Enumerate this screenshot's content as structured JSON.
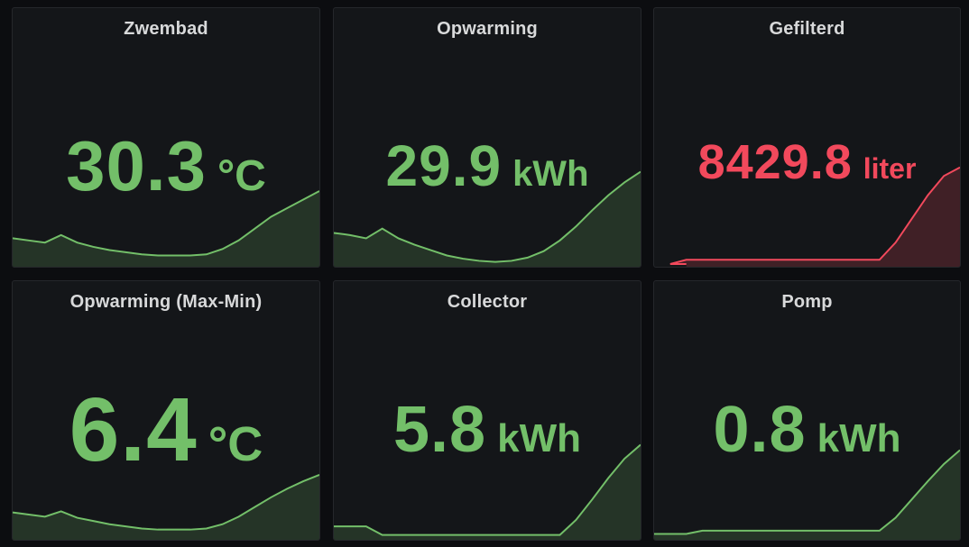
{
  "colors": {
    "ok": "#73bf69",
    "ok_fill": "rgba(115,191,105,0.18)",
    "alert": "#f2495c",
    "alert_fill": "rgba(242,73,92,0.20)"
  },
  "panels": [
    {
      "title": "Zwembad",
      "value": "30.3",
      "unit": "°C",
      "status": "ok",
      "spark": [
        0.24,
        0.22,
        0.2,
        0.27,
        0.2,
        0.16,
        0.13,
        0.11,
        0.09,
        0.08,
        0.08,
        0.08,
        0.09,
        0.14,
        0.22,
        0.33,
        0.44,
        0.52,
        0.6,
        0.68
      ]
    },
    {
      "title": "Opwarming",
      "value": "29.9",
      "unit": "kWh",
      "status": "ok",
      "spark": [
        0.29,
        0.27,
        0.24,
        0.33,
        0.24,
        0.18,
        0.13,
        0.08,
        0.05,
        0.03,
        0.02,
        0.03,
        0.06,
        0.12,
        0.22,
        0.35,
        0.5,
        0.64,
        0.76,
        0.86
      ]
    },
    {
      "title": "Gefilterd",
      "value": "8429.8",
      "unit": "liter",
      "status": "alert",
      "spark": [
        0.0,
        0.0,
        0.04,
        0.04,
        0.04,
        0.04,
        0.04,
        0.04,
        0.04,
        0.04,
        0.04,
        0.04,
        0.04,
        0.04,
        0.04,
        0.2,
        0.42,
        0.64,
        0.82,
        0.9
      ]
    },
    {
      "title": "Opwarming (Max-Min)",
      "value": "6.4",
      "unit": "°C",
      "status": "ok",
      "spark": [
        0.23,
        0.21,
        0.19,
        0.24,
        0.18,
        0.15,
        0.12,
        0.1,
        0.08,
        0.07,
        0.07,
        0.07,
        0.08,
        0.12,
        0.19,
        0.28,
        0.37,
        0.45,
        0.52,
        0.58
      ]
    },
    {
      "title": "Collector",
      "value": "5.8",
      "unit": "kWh",
      "status": "ok",
      "spark": [
        0.1,
        0.1,
        0.1,
        0.02,
        0.02,
        0.02,
        0.02,
        0.02,
        0.02,
        0.02,
        0.02,
        0.02,
        0.02,
        0.02,
        0.02,
        0.16,
        0.35,
        0.55,
        0.73,
        0.86
      ]
    },
    {
      "title": "Pomp",
      "value": "0.8",
      "unit": "kWh",
      "status": "ok",
      "spark": [
        0.03,
        0.03,
        0.03,
        0.06,
        0.06,
        0.06,
        0.06,
        0.06,
        0.06,
        0.06,
        0.06,
        0.06,
        0.06,
        0.06,
        0.06,
        0.18,
        0.35,
        0.52,
        0.68,
        0.81
      ]
    }
  ]
}
